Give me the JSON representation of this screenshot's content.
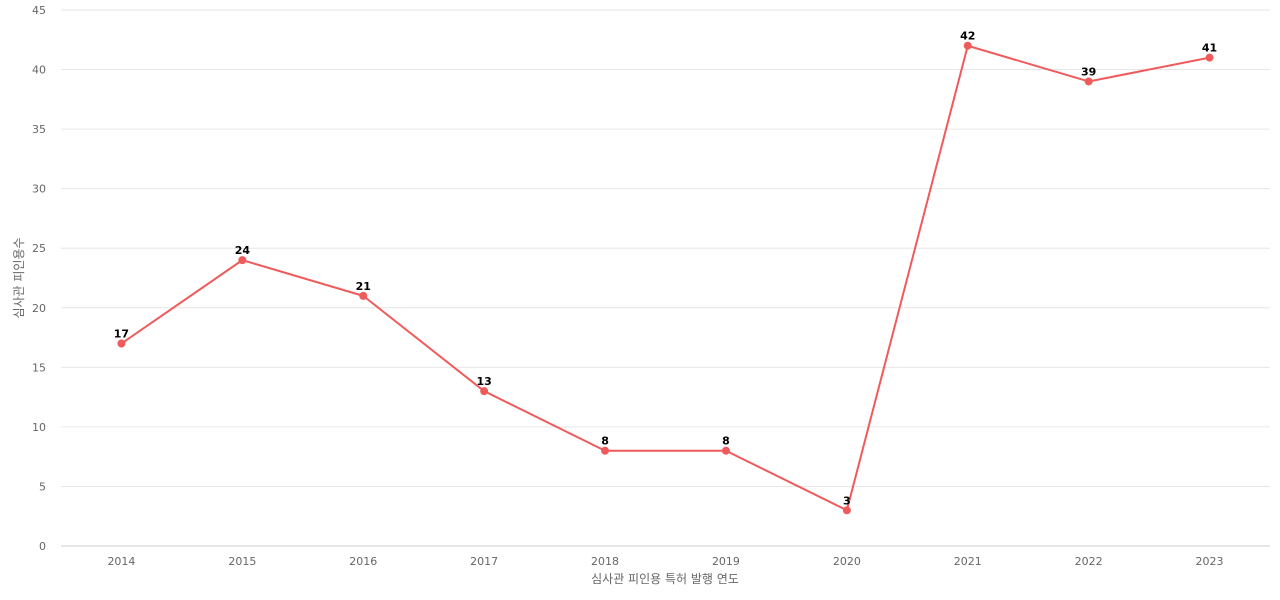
{
  "chart_data": {
    "type": "line",
    "title": "",
    "xlabel": "심사관 피인용 특허 발행 연도",
    "ylabel": "심사관 피인용수",
    "categories": [
      "2014",
      "2015",
      "2016",
      "2017",
      "2018",
      "2019",
      "2020",
      "2021",
      "2022",
      "2023"
    ],
    "series": [
      {
        "values": [
          17,
          24,
          21,
          13,
          8,
          8,
          3,
          42,
          39,
          41
        ],
        "color": "#ef5a5a"
      }
    ],
    "ylim": [
      0,
      45
    ],
    "yticks": [
      0,
      5,
      10,
      15,
      20,
      25,
      30,
      35,
      40,
      45
    ],
    "grid": true,
    "data_labels": true
  }
}
